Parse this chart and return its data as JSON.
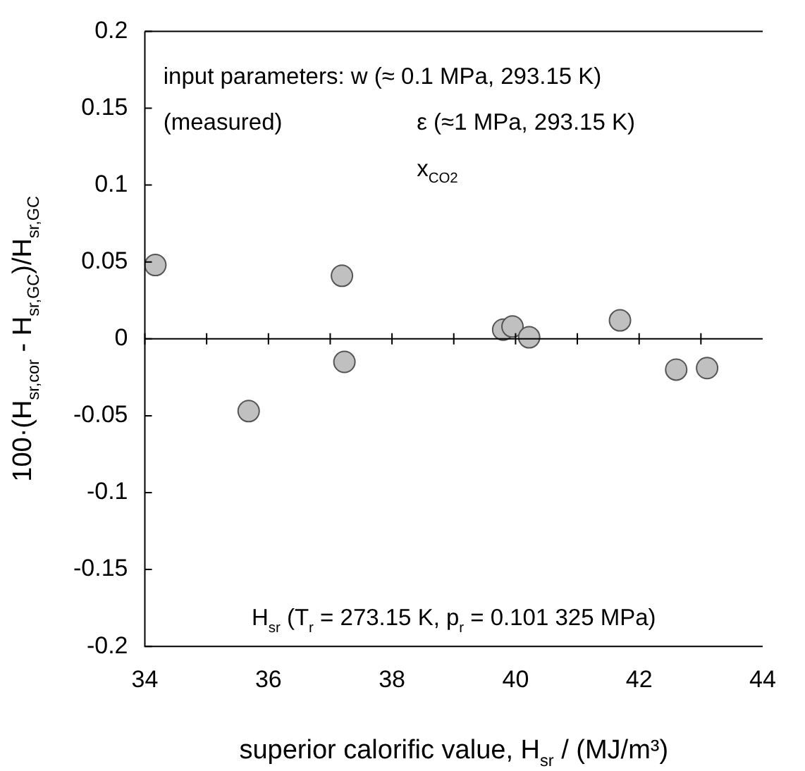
{
  "chart_data": {
    "type": "scatter",
    "xlabel": "superior calorific value, H$_{sr}$ / (MJ/m³)",
    "ylabel": "100·(H$_{sr,cor}$ - H$_{sr,GC}$)/H$_{sr,GC}$",
    "annotations": [
      "input parameters: w (≈ 0.1 MPa, 293.15 K)",
      "(measured)",
      "ε (≈1 MPa, 293.15 K)",
      "x$_{CO2}$",
      "H$_{sr}$ (T$_{r}$ = 273.15 K, p$_{r}$ = 0.101 325 MPa)"
    ],
    "x": [
      34.17,
      35.68,
      37.19,
      37.23,
      39.8,
      39.95,
      40.22,
      41.69,
      42.6,
      43.1
    ],
    "series": [
      {
        "color": "#c0c0c0",
        "values": [
          0.048,
          -0.047,
          0.041,
          -0.015,
          0.006,
          0.008,
          0.001,
          0.012,
          -0.02,
          -0.019
        ]
      }
    ],
    "xlim": [
      34,
      44
    ],
    "xticks": [
      34,
      36,
      38,
      40,
      42,
      44
    ],
    "ylim": [
      -0.2,
      0.2
    ],
    "yticks": [
      -0.2,
      -0.15,
      -0.1,
      -0.05,
      0,
      0.05,
      0.1,
      0.15,
      0.2
    ],
    "ref_lines": [
      {
        "axis": "y",
        "value": 0
      }
    ],
    "grid": false,
    "legend": false,
    "marker": "circle"
  }
}
